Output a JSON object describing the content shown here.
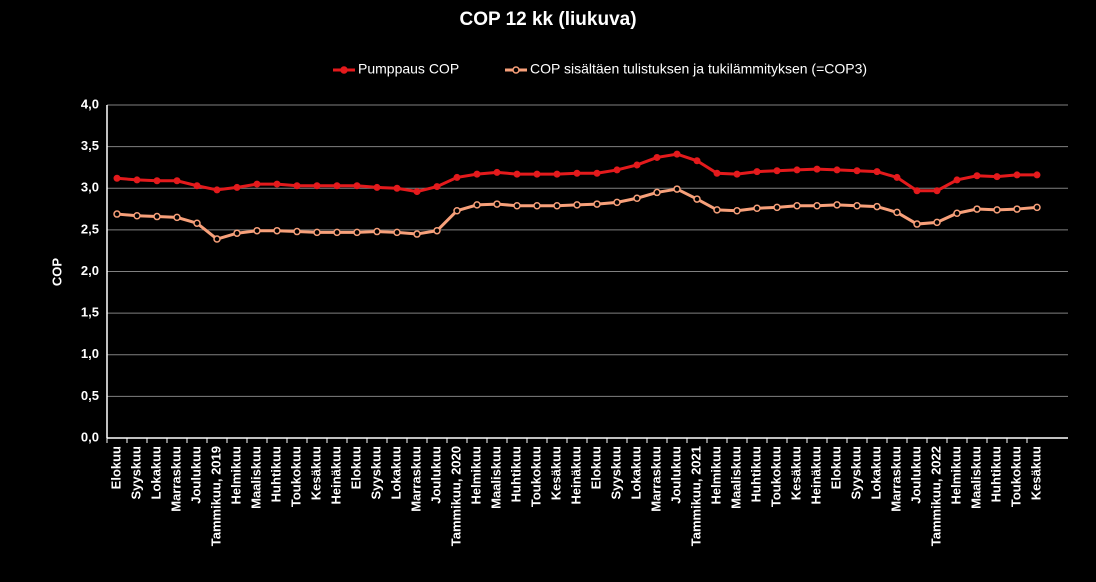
{
  "chart_data": {
    "type": "line",
    "title": "COP 12 kk (liukuva)",
    "y_label": "COP",
    "categories": [
      "Elokuu",
      "Syyskuu",
      "Lokakuu",
      "Marraskuu",
      "Joulukuu",
      "Tammikuu, 2019",
      "Helmikuu",
      "Maaliskuu",
      "Huhtikuu",
      "Toukokuu",
      "Kesäkuu",
      "Heinäkuu",
      "Elokuu",
      "Syyskuu",
      "Lokakuu",
      "Marraskuu",
      "Joulukuu",
      "Tammikuu, 2020",
      "Helmikuu",
      "Maaliskuu",
      "Huhtikuu",
      "Toukokuu",
      "Kesäkuu",
      "Heinäkuu",
      "Elokuu",
      "Syyskuu",
      "Lokakuu",
      "Marraskuu",
      "Joulukuu",
      "Tammikuu, 2021",
      "Helmikuu",
      "Maaliskuu",
      "Huhtikuu",
      "Toukokuu",
      "Kesäkuu",
      "Heinäkuu",
      "Elokuu",
      "Syyskuu",
      "Lokakuu",
      "Marraskuu",
      "Joulukuu",
      "Tammikuu, 2022",
      "Helmikuu",
      "Maaliskuu",
      "Huhtikuu",
      "Toukokuu",
      "Kesäkuu"
    ],
    "series": [
      {
        "name": "Pumppaus COP",
        "color": "#e41a1c",
        "values": [
          3.12,
          3.1,
          3.09,
          3.09,
          3.03,
          2.98,
          3.01,
          3.05,
          3.05,
          3.03,
          3.03,
          3.03,
          3.03,
          3.01,
          3.0,
          2.96,
          3.02,
          3.13,
          3.17,
          3.19,
          3.17,
          3.17,
          3.17,
          3.18,
          3.18,
          3.22,
          3.28,
          3.37,
          3.41,
          3.33,
          3.18,
          3.17,
          3.2,
          3.21,
          3.22,
          3.23,
          3.22,
          3.21,
          3.2,
          3.13,
          2.97,
          2.97,
          3.1,
          3.15,
          3.14,
          3.16,
          3.16
        ]
      },
      {
        "name": "COP sisältäen tulistuksen ja tukilämmityksen (=COP3)",
        "color": "#f7a07a",
        "values": [
          2.69,
          2.67,
          2.66,
          2.65,
          2.58,
          2.39,
          2.46,
          2.49,
          2.49,
          2.48,
          2.47,
          2.47,
          2.47,
          2.48,
          2.47,
          2.45,
          2.49,
          2.73,
          2.8,
          2.81,
          2.79,
          2.79,
          2.79,
          2.8,
          2.81,
          2.83,
          2.88,
          2.95,
          2.99,
          2.87,
          2.74,
          2.73,
          2.76,
          2.77,
          2.79,
          2.79,
          2.8,
          2.79,
          2.78,
          2.71,
          2.57,
          2.59,
          2.7,
          2.75,
          2.74,
          2.75,
          2.77
        ]
      }
    ],
    "ylim": [
      0,
      4
    ],
    "yticks": [
      {
        "value": 0,
        "label": "0,0"
      },
      {
        "value": 0.5,
        "label": "0,5"
      },
      {
        "value": 1,
        "label": "1,0"
      },
      {
        "value": 1.5,
        "label": "1,5"
      },
      {
        "value": 2,
        "label": "2,0"
      },
      {
        "value": 2.5,
        "label": "2,5"
      },
      {
        "value": 3,
        "label": "3,0"
      },
      {
        "value": 3.5,
        "label": "3,5"
      },
      {
        "value": 4,
        "label": "4,0"
      }
    ],
    "grid": true
  }
}
